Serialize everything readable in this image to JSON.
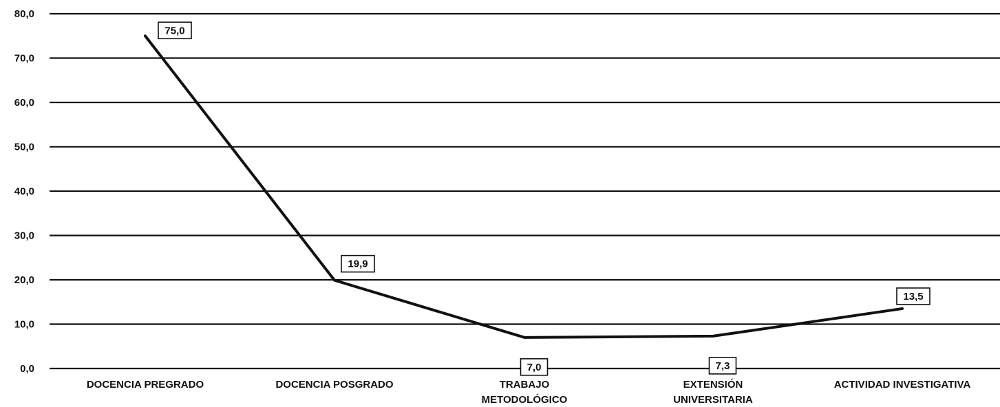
{
  "chart_data": {
    "type": "line",
    "categories": [
      [
        "DOCENCIA PREGRADO"
      ],
      [
        "DOCENCIA POSGRADO"
      ],
      [
        "TRABAJO",
        "METODOLÓGICO"
      ],
      [
        "EXTENSIÓN",
        "UNIVERSITARIA"
      ],
      [
        "ACTIVIDAD INVESTIGATIVA"
      ]
    ],
    "values": [
      75.0,
      19.9,
      7.0,
      7.3,
      13.5
    ],
    "data_labels": [
      "75,0",
      "19,9",
      "7,0",
      "7,3",
      "13,5"
    ],
    "ylim": [
      0,
      80
    ],
    "yticks": [
      0,
      10,
      20,
      30,
      40,
      50,
      60,
      70,
      80
    ],
    "ytick_labels": [
      "0,0",
      "10,0",
      "20,0",
      "30,0",
      "40,0",
      "50,0",
      "60,0",
      "70,0",
      "80,0"
    ],
    "grid": true,
    "legend": "none",
    "line_color": "#111111",
    "grid_color": "#111111"
  }
}
